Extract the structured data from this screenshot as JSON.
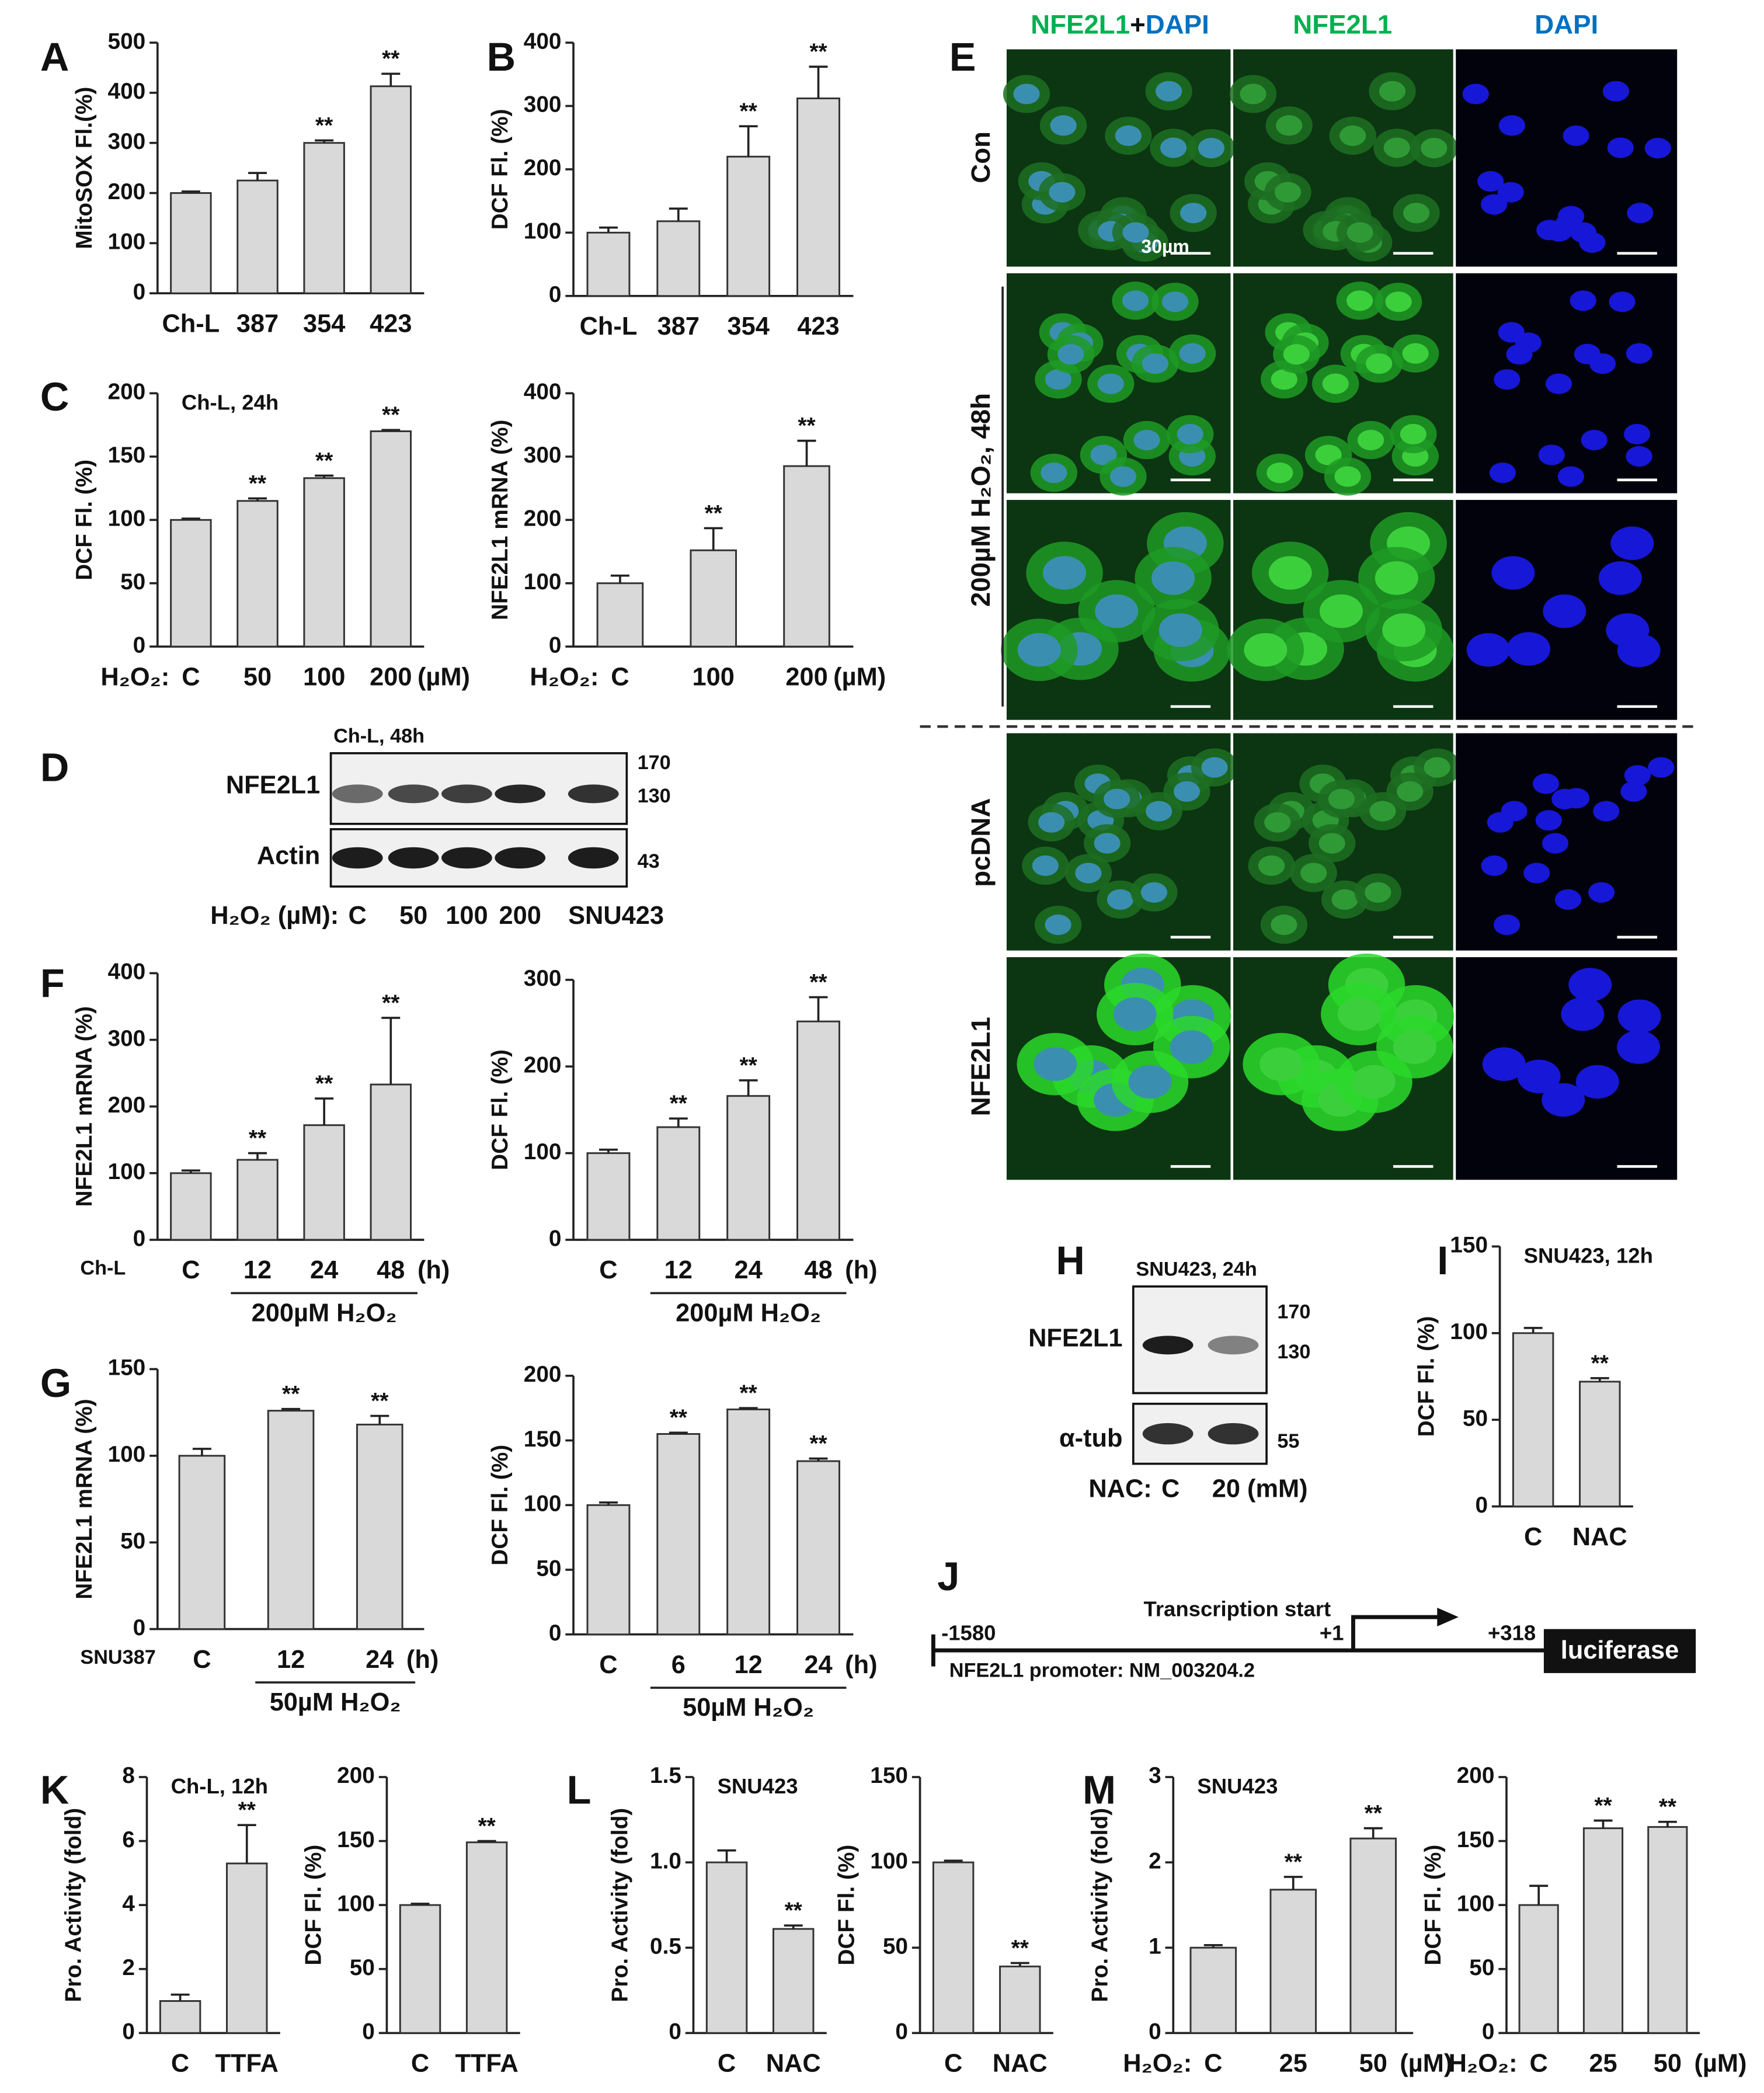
{
  "panel_letters": [
    "A",
    "B",
    "C",
    "D",
    "E",
    "F",
    "G",
    "H",
    "I",
    "J",
    "K",
    "L",
    "M"
  ],
  "chart_data": [
    {
      "type": "bar",
      "ylabel": "MitoSOX Fl.(%)",
      "categories": [
        "Ch-L",
        "387",
        "354",
        "423"
      ],
      "values": [
        200,
        225,
        300,
        413
      ],
      "errors": [
        3,
        15,
        5,
        25
      ],
      "significance": [
        null,
        null,
        "**",
        "**"
      ],
      "ylim": [
        0,
        500
      ],
      "yticks": [
        0,
        100,
        200,
        300,
        400,
        500
      ],
      "color": "#d9d9d9"
    },
    {
      "type": "bar",
      "ylabel": "DCF Fl. (%)",
      "categories": [
        "Ch-L",
        "387",
        "354",
        "423"
      ],
      "values": [
        100,
        118,
        220,
        312
      ],
      "errors": [
        8,
        20,
        48,
        50
      ],
      "significance": [
        null,
        null,
        "**",
        "**"
      ],
      "ylim": [
        0,
        400
      ],
      "yticks": [
        0,
        100,
        200,
        300,
        400
      ],
      "color": "#d9d9d9"
    },
    {
      "type": "bar",
      "ylabel": "DCF Fl. (%)",
      "note": "Ch-L, 24h",
      "x_prefix": "H₂O₂:",
      "x_suffix": "(µM)",
      "categories": [
        "C",
        "50",
        "100",
        "200"
      ],
      "values": [
        100,
        115,
        133,
        170
      ],
      "errors": [
        1,
        2,
        2,
        1
      ],
      "significance": [
        null,
        "**",
        "**",
        "**"
      ],
      "ylim": [
        0,
        200
      ],
      "yticks": [
        0,
        50,
        100,
        150,
        200
      ],
      "color": "#d9d9d9"
    },
    {
      "type": "bar",
      "ylabel": "NFE2L1 mRNA (%)",
      "x_prefix": "H₂O₂:",
      "x_suffix": "(µM)",
      "categories": [
        "C",
        "100",
        "200"
      ],
      "values": [
        100,
        152,
        285
      ],
      "errors": [
        12,
        35,
        40
      ],
      "significance": [
        null,
        "**",
        "**"
      ],
      "ylim": [
        0,
        400
      ],
      "yticks": [
        0,
        100,
        200,
        300,
        400
      ],
      "color": "#d9d9d9"
    },
    {
      "type": "bar",
      "ylabel": "NFE2L1 mRNA (%)",
      "cell_line": "Ch-L",
      "x_suffix": "(h)",
      "group_label": "200µM H₂O₂",
      "categories": [
        "C",
        "12",
        "24",
        "48"
      ],
      "values": [
        100,
        120,
        172,
        233
      ],
      "errors": [
        4,
        10,
        40,
        100
      ],
      "significance": [
        null,
        "**",
        "**",
        "**"
      ],
      "ylim": [
        0,
        400
      ],
      "yticks": [
        0,
        100,
        200,
        300,
        400
      ],
      "color": "#d9d9d9"
    },
    {
      "type": "bar",
      "ylabel": "DCF Fl. (%)",
      "x_suffix": "(h)",
      "group_label": "200µM H₂O₂",
      "categories": [
        "C",
        "12",
        "24",
        "48"
      ],
      "values": [
        100,
        130,
        166,
        252
      ],
      "errors": [
        4,
        10,
        18,
        28
      ],
      "significance": [
        null,
        "**",
        "**",
        "**"
      ],
      "ylim": [
        0,
        300
      ],
      "yticks": [
        0,
        100,
        200,
        300
      ],
      "color": "#d9d9d9"
    },
    {
      "type": "bar",
      "ylabel": "NFE2L1 mRNA (%)",
      "cell_line": "SNU387",
      "x_suffix": "(h)",
      "group_label": "50µM H₂O₂",
      "categories": [
        "C",
        "12",
        "24"
      ],
      "values": [
        100,
        126,
        118
      ],
      "errors": [
        4,
        1,
        5
      ],
      "significance": [
        null,
        "**",
        "**"
      ],
      "ylim": [
        0,
        150
      ],
      "yticks": [
        0,
        50,
        100,
        150
      ],
      "color": "#d9d9d9"
    },
    {
      "type": "bar",
      "ylabel": "DCF Fl. (%)",
      "x_suffix": "(h)",
      "group_label": "50µM H₂O₂",
      "categories": [
        "C",
        "6",
        "12",
        "24"
      ],
      "values": [
        100,
        155,
        174,
        134
      ],
      "errors": [
        2,
        1,
        1,
        2
      ],
      "significance": [
        null,
        "**",
        "**",
        "**"
      ],
      "ylim": [
        0,
        200
      ],
      "yticks": [
        0,
        50,
        100,
        150,
        200
      ],
      "color": "#d9d9d9"
    },
    {
      "type": "bar",
      "ylabel": "DCF Fl. (%)",
      "note": "SNU423, 12h",
      "categories": [
        "C",
        "NAC"
      ],
      "values": [
        100,
        72
      ],
      "errors": [
        3,
        2
      ],
      "significance": [
        null,
        "**"
      ],
      "ylim": [
        0,
        150
      ],
      "yticks": [
        0,
        50,
        100,
        150
      ],
      "color": "#d9d9d9"
    },
    {
      "type": "bar",
      "ylabel": "Pro. Activity (fold)",
      "note": "Ch-L, 12h",
      "categories": [
        "C",
        "TTFA"
      ],
      "values": [
        1.0,
        5.3
      ],
      "errors": [
        0.2,
        1.2
      ],
      "significance": [
        null,
        "**"
      ],
      "ylim": [
        0,
        8
      ],
      "yticks": [
        0,
        2,
        4,
        6,
        8
      ],
      "color": "#d9d9d9"
    },
    {
      "type": "bar",
      "ylabel": "DCF Fl. (%)",
      "categories": [
        "C",
        "TTFA"
      ],
      "values": [
        100,
        149
      ],
      "errors": [
        1,
        1
      ],
      "significance": [
        null,
        "**"
      ],
      "ylim": [
        0,
        200
      ],
      "yticks": [
        0,
        50,
        100,
        150,
        200
      ],
      "color": "#d9d9d9"
    },
    {
      "type": "bar",
      "ylabel": "Pro. Activity (fold)",
      "note": "SNU423",
      "categories": [
        "C",
        "NAC"
      ],
      "values": [
        1.0,
        0.61
      ],
      "errors": [
        0.07,
        0.02
      ],
      "significance": [
        null,
        "**"
      ],
      "ylim": [
        0,
        1.5
      ],
      "yticks": [
        0,
        0.5,
        {
          "value": 1,
          "label": "1.0"
        },
        1.5
      ],
      "color": "#d9d9d9"
    },
    {
      "type": "bar",
      "ylabel": "DCF Fl. (%)",
      "categories": [
        "C",
        "NAC"
      ],
      "values": [
        100,
        39
      ],
      "errors": [
        1,
        2
      ],
      "significance": [
        null,
        "**"
      ],
      "ylim": [
        0,
        150
      ],
      "yticks": [
        0,
        50,
        100,
        150
      ],
      "color": "#d9d9d9"
    },
    {
      "type": "bar",
      "ylabel": "Pro. Activity (fold)",
      "note": "SNU423",
      "x_prefix": "H₂O₂:",
      "x_suffix": "(µM)",
      "categories": [
        "C",
        "25",
        "50"
      ],
      "values": [
        1.0,
        1.68,
        2.28
      ],
      "errors": [
        0.03,
        0.15,
        0.12
      ],
      "significance": [
        null,
        "**",
        "**"
      ],
      "ylim": [
        0,
        3
      ],
      "yticks": [
        0,
        1,
        2,
        3
      ],
      "color": "#d9d9d9"
    },
    {
      "type": "bar",
      "ylabel": "DCF Fl. (%)",
      "x_prefix": "H₂O₂:",
      "x_suffix": "(µM)",
      "categories": [
        "C",
        "25",
        "50"
      ],
      "values": [
        100,
        160,
        161
      ],
      "errors": [
        15,
        6,
        4
      ],
      "significance": [
        null,
        "**",
        "**"
      ],
      "ylim": [
        0,
        200
      ],
      "yticks": [
        0,
        50,
        100,
        150,
        200
      ],
      "color": "#d9d9d9"
    }
  ],
  "blot_d": {
    "note": "Ch-L, 48h",
    "rows": [
      "NFE2L1",
      "Actin"
    ],
    "markers": [
      170,
      130,
      43
    ],
    "x_prefix": "H₂O₂ (µM):",
    "lanes": [
      "C",
      "50",
      "100",
      "200",
      "SNU423"
    ]
  },
  "blot_h": {
    "note": "SNU423, 24h",
    "rows": [
      "NFE2L1",
      "α-tub"
    ],
    "markers": [
      170,
      130,
      55
    ],
    "x_prefix": "NAC:",
    "lanes": [
      "C",
      "20 (mM)"
    ]
  },
  "microscopy": {
    "columns": [
      [
        "NFE2L1",
        "+",
        "DAPI"
      ],
      "NFE2L1",
      "DAPI"
    ],
    "rows": [
      "Con",
      "200µM H₂O₂, 48h",
      "pcDNA",
      "NFE2L1"
    ],
    "scale_bar": "30µm"
  },
  "promoter": {
    "start": "-1580",
    "tss": "+1",
    "tss_label": "Transcription start",
    "end": "+318",
    "reporter": "luciferase",
    "caption": "NFE2L1 promoter: NM_003204.2"
  }
}
